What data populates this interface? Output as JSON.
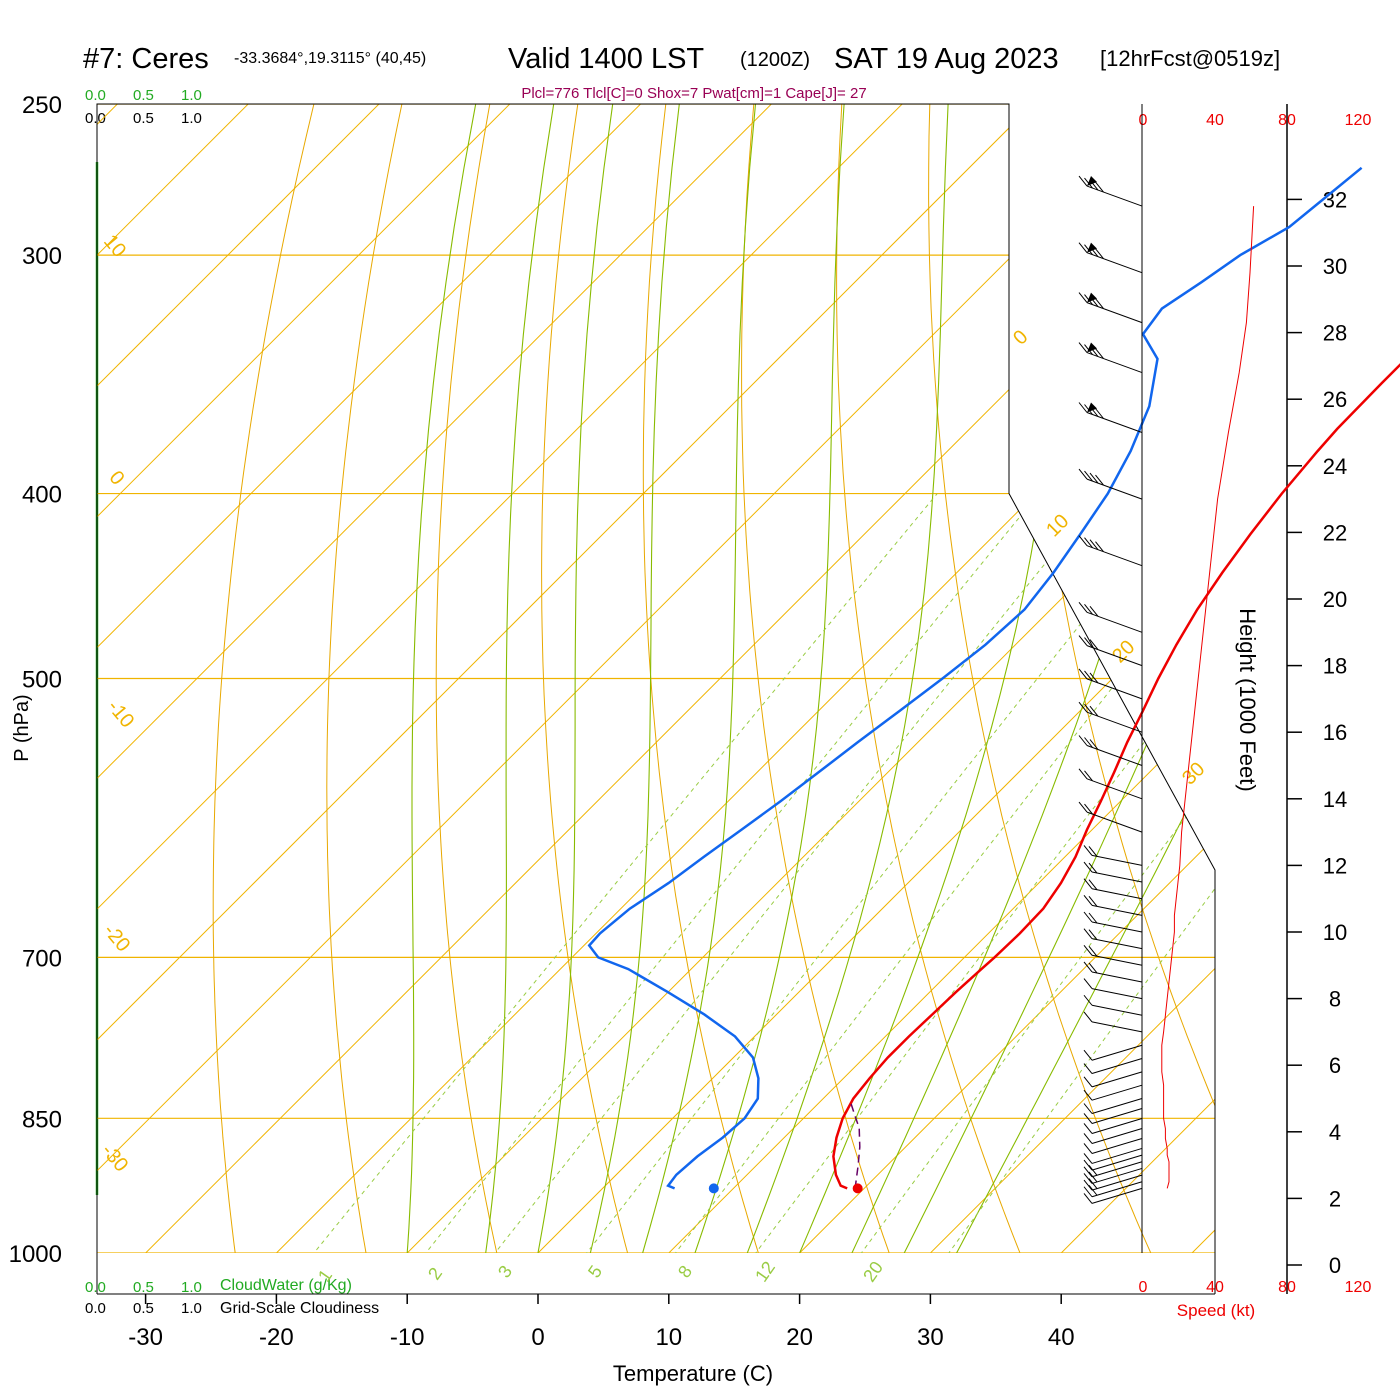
{
  "header": {
    "station": "#7: Ceres",
    "coords": "-33.3684°,19.3115° (40,45)",
    "valid": "Valid 1400 LST",
    "utc": "(1200Z)",
    "date": "SAT 19 Aug 2023",
    "forecast": "[12hrFcst@0519z]"
  },
  "indices": "Plcl=776 Tlcl[C]=0 Shox=7 Pwat[cm]=1 Cape[J]= 27",
  "cloud_scale": {
    "values": [
      "0.0",
      "0.5",
      "1.0"
    ],
    "cloudwater_label": "CloudWater (g/Kg)",
    "cloudiness_label": "Grid-Scale Cloudiness"
  },
  "colors": {
    "temperature": "#ee0000",
    "dewpoint": "#1166ee",
    "isotherm": "#f0b400",
    "dry_adiabat": "#e8a800",
    "moist_adiabat": "#88bb00",
    "mixing_ratio": "#99cc44",
    "cloud": "#22aa22",
    "indices": "#990055",
    "speed": "#ee0000",
    "parcel": "#660066"
  },
  "chart_data": {
    "type": "line",
    "subtype": "skew-t log-p sounding",
    "xlabel": "Temperature (C)",
    "ylabel": "P (hPa)",
    "y2label": "Height (1000 Feet)",
    "x_ticks": [
      "-30",
      "-20",
      "-10",
      "0",
      "10",
      "20",
      "30",
      "40"
    ],
    "p_ticks": [
      "250",
      "300",
      "400",
      "500",
      "700",
      "850",
      "1000"
    ],
    "height_ticks": [
      "0",
      "2",
      "4",
      "6",
      "8",
      "10",
      "12",
      "14",
      "16",
      "18",
      "20",
      "22",
      "24",
      "26",
      "28",
      "30",
      "32"
    ],
    "isotherm_labels": [
      "10",
      "0",
      "-10",
      "-20",
      "-30",
      "0",
      "10",
      "20",
      "30"
    ],
    "mixing_ratio_labels": [
      "1",
      "2",
      "3",
      "5",
      "8",
      "12",
      "20"
    ],
    "speed_axis": {
      "label": "Speed (kt)",
      "ticks": [
        "0",
        "40",
        "80",
        "120"
      ]
    },
    "xlim": [
      -33,
      46
    ],
    "plim": [
      1030,
      250
    ],
    "series": [
      {
        "key": "temperature",
        "p": [
          925,
          922,
          910,
          890,
          870,
          850,
          830,
          810,
          790,
          770,
          750,
          730,
          710,
          700,
          680,
          660,
          640,
          620,
          600,
          580,
          560,
          540,
          520,
          500,
          480,
          460,
          440,
          420,
          400,
          380,
          370,
          350,
          330,
          310,
          290,
          270
        ],
        "t": [
          18.7,
          18.0,
          16.8,
          15.2,
          14.0,
          13.0,
          12.3,
          12.0,
          11.8,
          11.8,
          11.9,
          12.0,
          12.2,
          12.3,
          12.4,
          12.3,
          11.7,
          10.8,
          9.6,
          8.5,
          7.3,
          6.0,
          4.8,
          3.5,
          2.3,
          1.2,
          0.3,
          -0.5,
          -1.2,
          -1.7,
          -1.9,
          -2.0,
          -2.0,
          -2.0,
          -1.9,
          -1.8
        ]
      },
      {
        "key": "dewpoint",
        "p": [
          925,
          922,
          910,
          890,
          870,
          850,
          830,
          810,
          790,
          770,
          750,
          730,
          710,
          700,
          690,
          680,
          660,
          640,
          620,
          600,
          580,
          560,
          540,
          520,
          500,
          480,
          460,
          440,
          420,
          400,
          380,
          360,
          340,
          330,
          320,
          310,
          300,
          290,
          280,
          270
        ],
        "t": [
          5.5,
          4.8,
          4.6,
          4.8,
          5.3,
          5.5,
          5.0,
          3.5,
          1.5,
          -1.5,
          -5.5,
          -10.0,
          -14.8,
          -18.0,
          -19.6,
          -19.7,
          -19.3,
          -18.3,
          -17.6,
          -16.8,
          -16.0,
          -15.3,
          -14.6,
          -13.8,
          -13.0,
          -12.3,
          -12.0,
          -12.6,
          -13.5,
          -14.5,
          -16.0,
          -18.0,
          -21.0,
          -24.0,
          -24.5,
          -23.5,
          -22.6,
          -21.0,
          -20.5,
          -20.0
        ]
      },
      {
        "key": "parcel",
        "p": [
          925,
          900,
          880,
          860,
          850,
          835
        ],
        "t": [
          19.3,
          17.8,
          16.5,
          15.0,
          14.0,
          12.5
        ]
      }
    ],
    "surface_points": [
      {
        "key": "temperature",
        "p": 925,
        "t": 19.5
      },
      {
        "key": "dewpoint",
        "p": 925,
        "t": 8.5
      }
    ],
    "wind": {
      "height_kft": [
        2.3,
        2.5,
        2.7,
        2.9,
        3.1,
        3.3,
        3.5,
        3.8,
        4.1,
        4.4,
        4.7,
        5.0,
        5.4,
        5.8,
        6.2,
        6.6,
        7.0,
        7.5,
        8.0,
        8.5,
        9.0,
        9.5,
        10.0,
        10.5,
        11.0,
        11.5,
        12.0,
        13.0,
        14.0,
        15.0,
        16.0,
        17.0,
        18.0,
        19.0,
        21.0,
        23.0,
        25.0,
        26.8,
        28.3,
        29.8,
        31.8
      ],
      "speed_kt": [
        14,
        15,
        15,
        15,
        15,
        14,
        14,
        13,
        13,
        12,
        12,
        12,
        12,
        11,
        11,
        11,
        12,
        13,
        14,
        15,
        16,
        17,
        18,
        18,
        19,
        20,
        21,
        22,
        24,
        26,
        28,
        30,
        32,
        34,
        38,
        42,
        48,
        54,
        58,
        60,
        62
      ]
    }
  }
}
